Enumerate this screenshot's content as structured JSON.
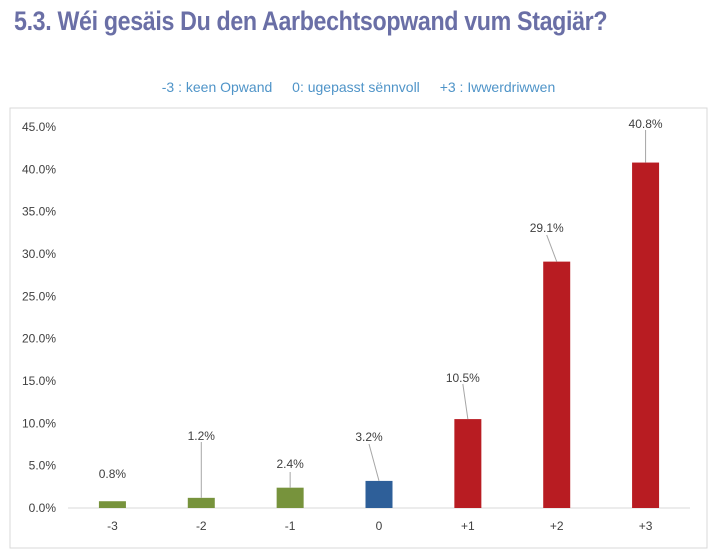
{
  "heading": "5.3. Wéi gesäis Du den Aarbechtsopwand vum Stagiär?",
  "legend": {
    "items": [
      "-3 : keen Opwand",
      "0: ugepasst sënnvoll",
      "+3 : Iwwerdriwwen"
    ],
    "color": "#4f94c8"
  },
  "colors": {
    "title": "#6a6fa6",
    "negative": "#77933c",
    "neutral": "#2e5f99",
    "positive": "#b81c22"
  },
  "chart_data": {
    "type": "bar",
    "title": "5.3. Wéi gesäis Du den Aarbechtsopwand vum Stagiär?",
    "categories": [
      "-3",
      "-2",
      "-1",
      "0",
      "+1",
      "+2",
      "+3"
    ],
    "values": [
      0.8,
      1.2,
      2.4,
      3.2,
      10.5,
      29.1,
      40.8
    ],
    "value_labels": [
      "0.8%",
      "1.2%",
      "2.4%",
      "3.2%",
      "10.5%",
      "29.1%",
      "40.8%"
    ],
    "bar_groups": [
      "negative",
      "negative",
      "negative",
      "neutral",
      "positive",
      "positive",
      "positive"
    ],
    "yticks": [
      "0.0%",
      "5.0%",
      "10.0%",
      "15.0%",
      "20.0%",
      "25.0%",
      "30.0%",
      "35.0%",
      "40.0%",
      "45.0%"
    ],
    "ylim": [
      0,
      45
    ],
    "xlabel": "",
    "ylabel": "",
    "grid": false
  }
}
